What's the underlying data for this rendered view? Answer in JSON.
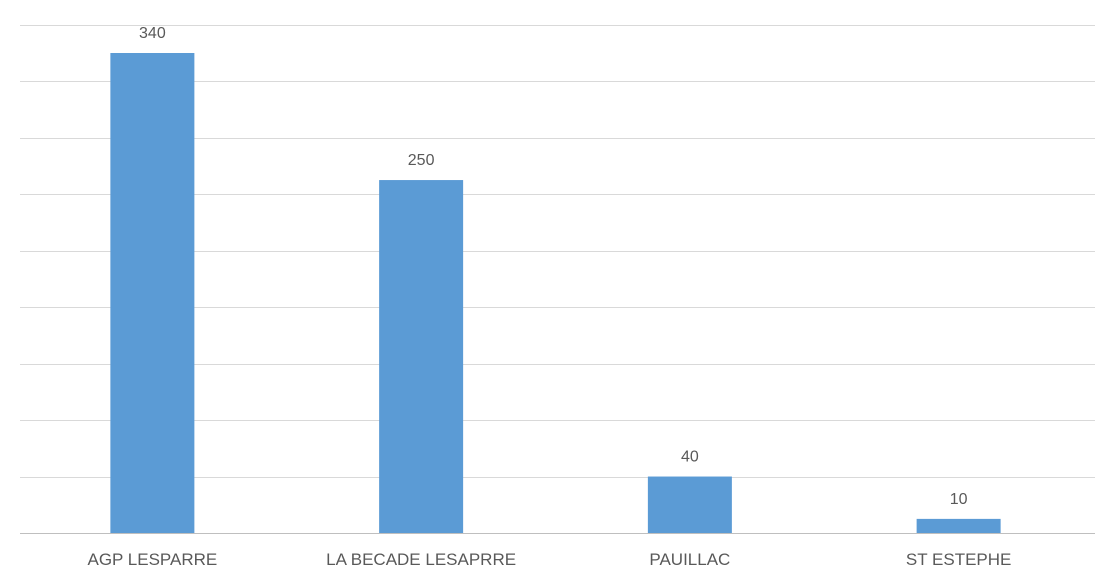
{
  "chart_data": {
    "type": "bar",
    "categories": [
      "AGP LESPARRE",
      "LA BECADE LESAPRRE",
      "PAUILLAC",
      "ST ESTEPHE"
    ],
    "values": [
      340,
      250,
      40,
      10
    ],
    "data_labels": [
      "340",
      "250",
      "40",
      "10"
    ],
    "ylim": [
      0,
      360
    ],
    "y_gridline_step": 40,
    "y_tick_labels_shown": false,
    "grid": true,
    "legend": "none",
    "bar_color": "#5b9bd5",
    "grid_color": "#d9d9d9",
    "axis_color": "#bfbfbf",
    "label_color": "#595959"
  }
}
